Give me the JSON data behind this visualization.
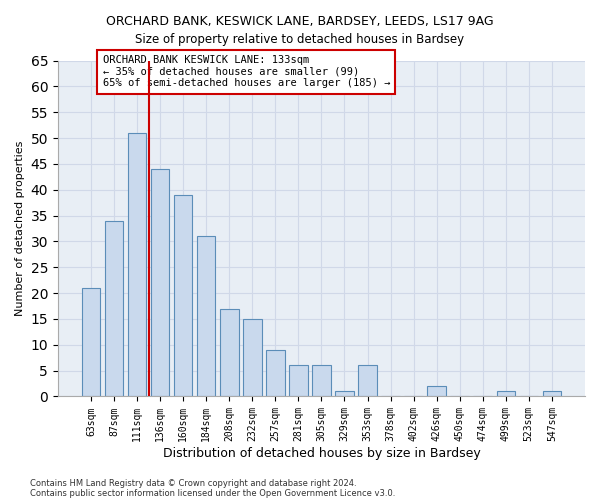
{
  "title1": "ORCHARD BANK, KESWICK LANE, BARDSEY, LEEDS, LS17 9AG",
  "title2": "Size of property relative to detached houses in Bardsey",
  "xlabel": "Distribution of detached houses by size in Bardsey",
  "ylabel": "Number of detached properties",
  "categories": [
    "63sqm",
    "87sqm",
    "111sqm",
    "136sqm",
    "160sqm",
    "184sqm",
    "208sqm",
    "232sqm",
    "257sqm",
    "281sqm",
    "305sqm",
    "329sqm",
    "353sqm",
    "378sqm",
    "402sqm",
    "426sqm",
    "450sqm",
    "474sqm",
    "499sqm",
    "523sqm",
    "547sqm"
  ],
  "values": [
    21,
    34,
    51,
    44,
    39,
    31,
    17,
    15,
    9,
    6,
    6,
    1,
    6,
    0,
    0,
    2,
    0,
    0,
    1,
    0,
    1
  ],
  "bar_color": "#c9d9ed",
  "bar_edge_color": "#5b8db8",
  "highlight_index": 2,
  "highlight_line_color": "#cc0000",
  "annotation_text": "ORCHARD BANK KESWICK LANE: 133sqm\n← 35% of detached houses are smaller (99)\n65% of semi-detached houses are larger (185) →",
  "annotation_box_color": "#ffffff",
  "annotation_box_edge": "#cc0000",
  "ylim": [
    0,
    65
  ],
  "yticks": [
    0,
    5,
    10,
    15,
    20,
    25,
    30,
    35,
    40,
    45,
    50,
    55,
    60,
    65
  ],
  "grid_color": "#d0d8e8",
  "background_color": "#e8eef5",
  "footer1": "Contains HM Land Registry data © Crown copyright and database right 2024.",
  "footer2": "Contains public sector information licensed under the Open Government Licence v3.0."
}
